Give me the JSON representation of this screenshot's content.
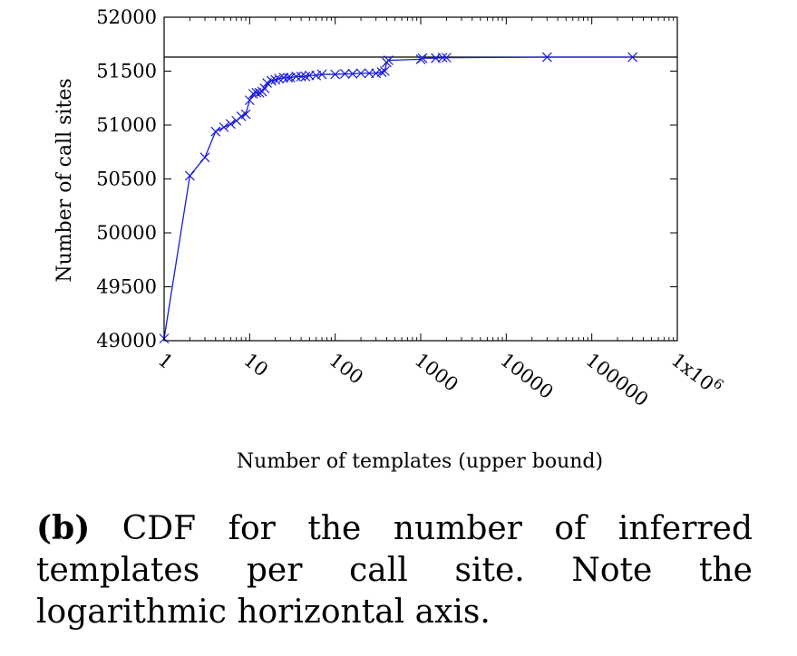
{
  "chart_data": {
    "type": "line",
    "xscale": "log",
    "xlabel": "Number of templates (upper bound)",
    "ylabel": "Number of call sites",
    "xlim": [
      1,
      1000000
    ],
    "ylim": [
      49000,
      52000
    ],
    "x_ticks": [
      1,
      10,
      100,
      1000,
      10000,
      100000,
      1000000
    ],
    "x_tick_labels": [
      "1",
      "10",
      "100",
      "1000",
      "10000",
      "100000",
      "1x10^6"
    ],
    "y_ticks": [
      49000,
      49500,
      50000,
      50500,
      51000,
      51500,
      52000
    ],
    "y_tick_labels": [
      "49000",
      "49500",
      "50000",
      "50500",
      "51000",
      "51500",
      "52000"
    ],
    "reference_line": {
      "y": 51630
    },
    "grid": false,
    "legend": "none",
    "colors": {
      "series": "#1a1adc",
      "reference": "#000000"
    },
    "series": [
      {
        "x": [
          1,
          2,
          3,
          4,
          5,
          6,
          7,
          8,
          9,
          10,
          11,
          12,
          13,
          14,
          15,
          16,
          18,
          20,
          22,
          25,
          28,
          30,
          35,
          40,
          45,
          50,
          60,
          70,
          100,
          130,
          160,
          200,
          250,
          300,
          350,
          380,
          400,
          420,
          1000,
          1050,
          1500,
          1800,
          2000,
          30000,
          300000
        ],
        "y": [
          49020,
          50530,
          50700,
          50940,
          50980,
          51010,
          51040,
          51080,
          51100,
          51230,
          51290,
          51300,
          51300,
          51310,
          51340,
          51390,
          51410,
          51420,
          51430,
          51440,
          51440,
          51440,
          51450,
          51450,
          51450,
          51460,
          51460,
          51470,
          51470,
          51475,
          51475,
          51480,
          51480,
          51480,
          51490,
          51500,
          51580,
          51600,
          51610,
          51620,
          51620,
          51625,
          51625,
          51630,
          51630
        ]
      }
    ]
  },
  "caption": {
    "tag": "(b)",
    "text": "CDF for the number of inferred templates per call site. Note the logarithmic horizontal axis."
  }
}
